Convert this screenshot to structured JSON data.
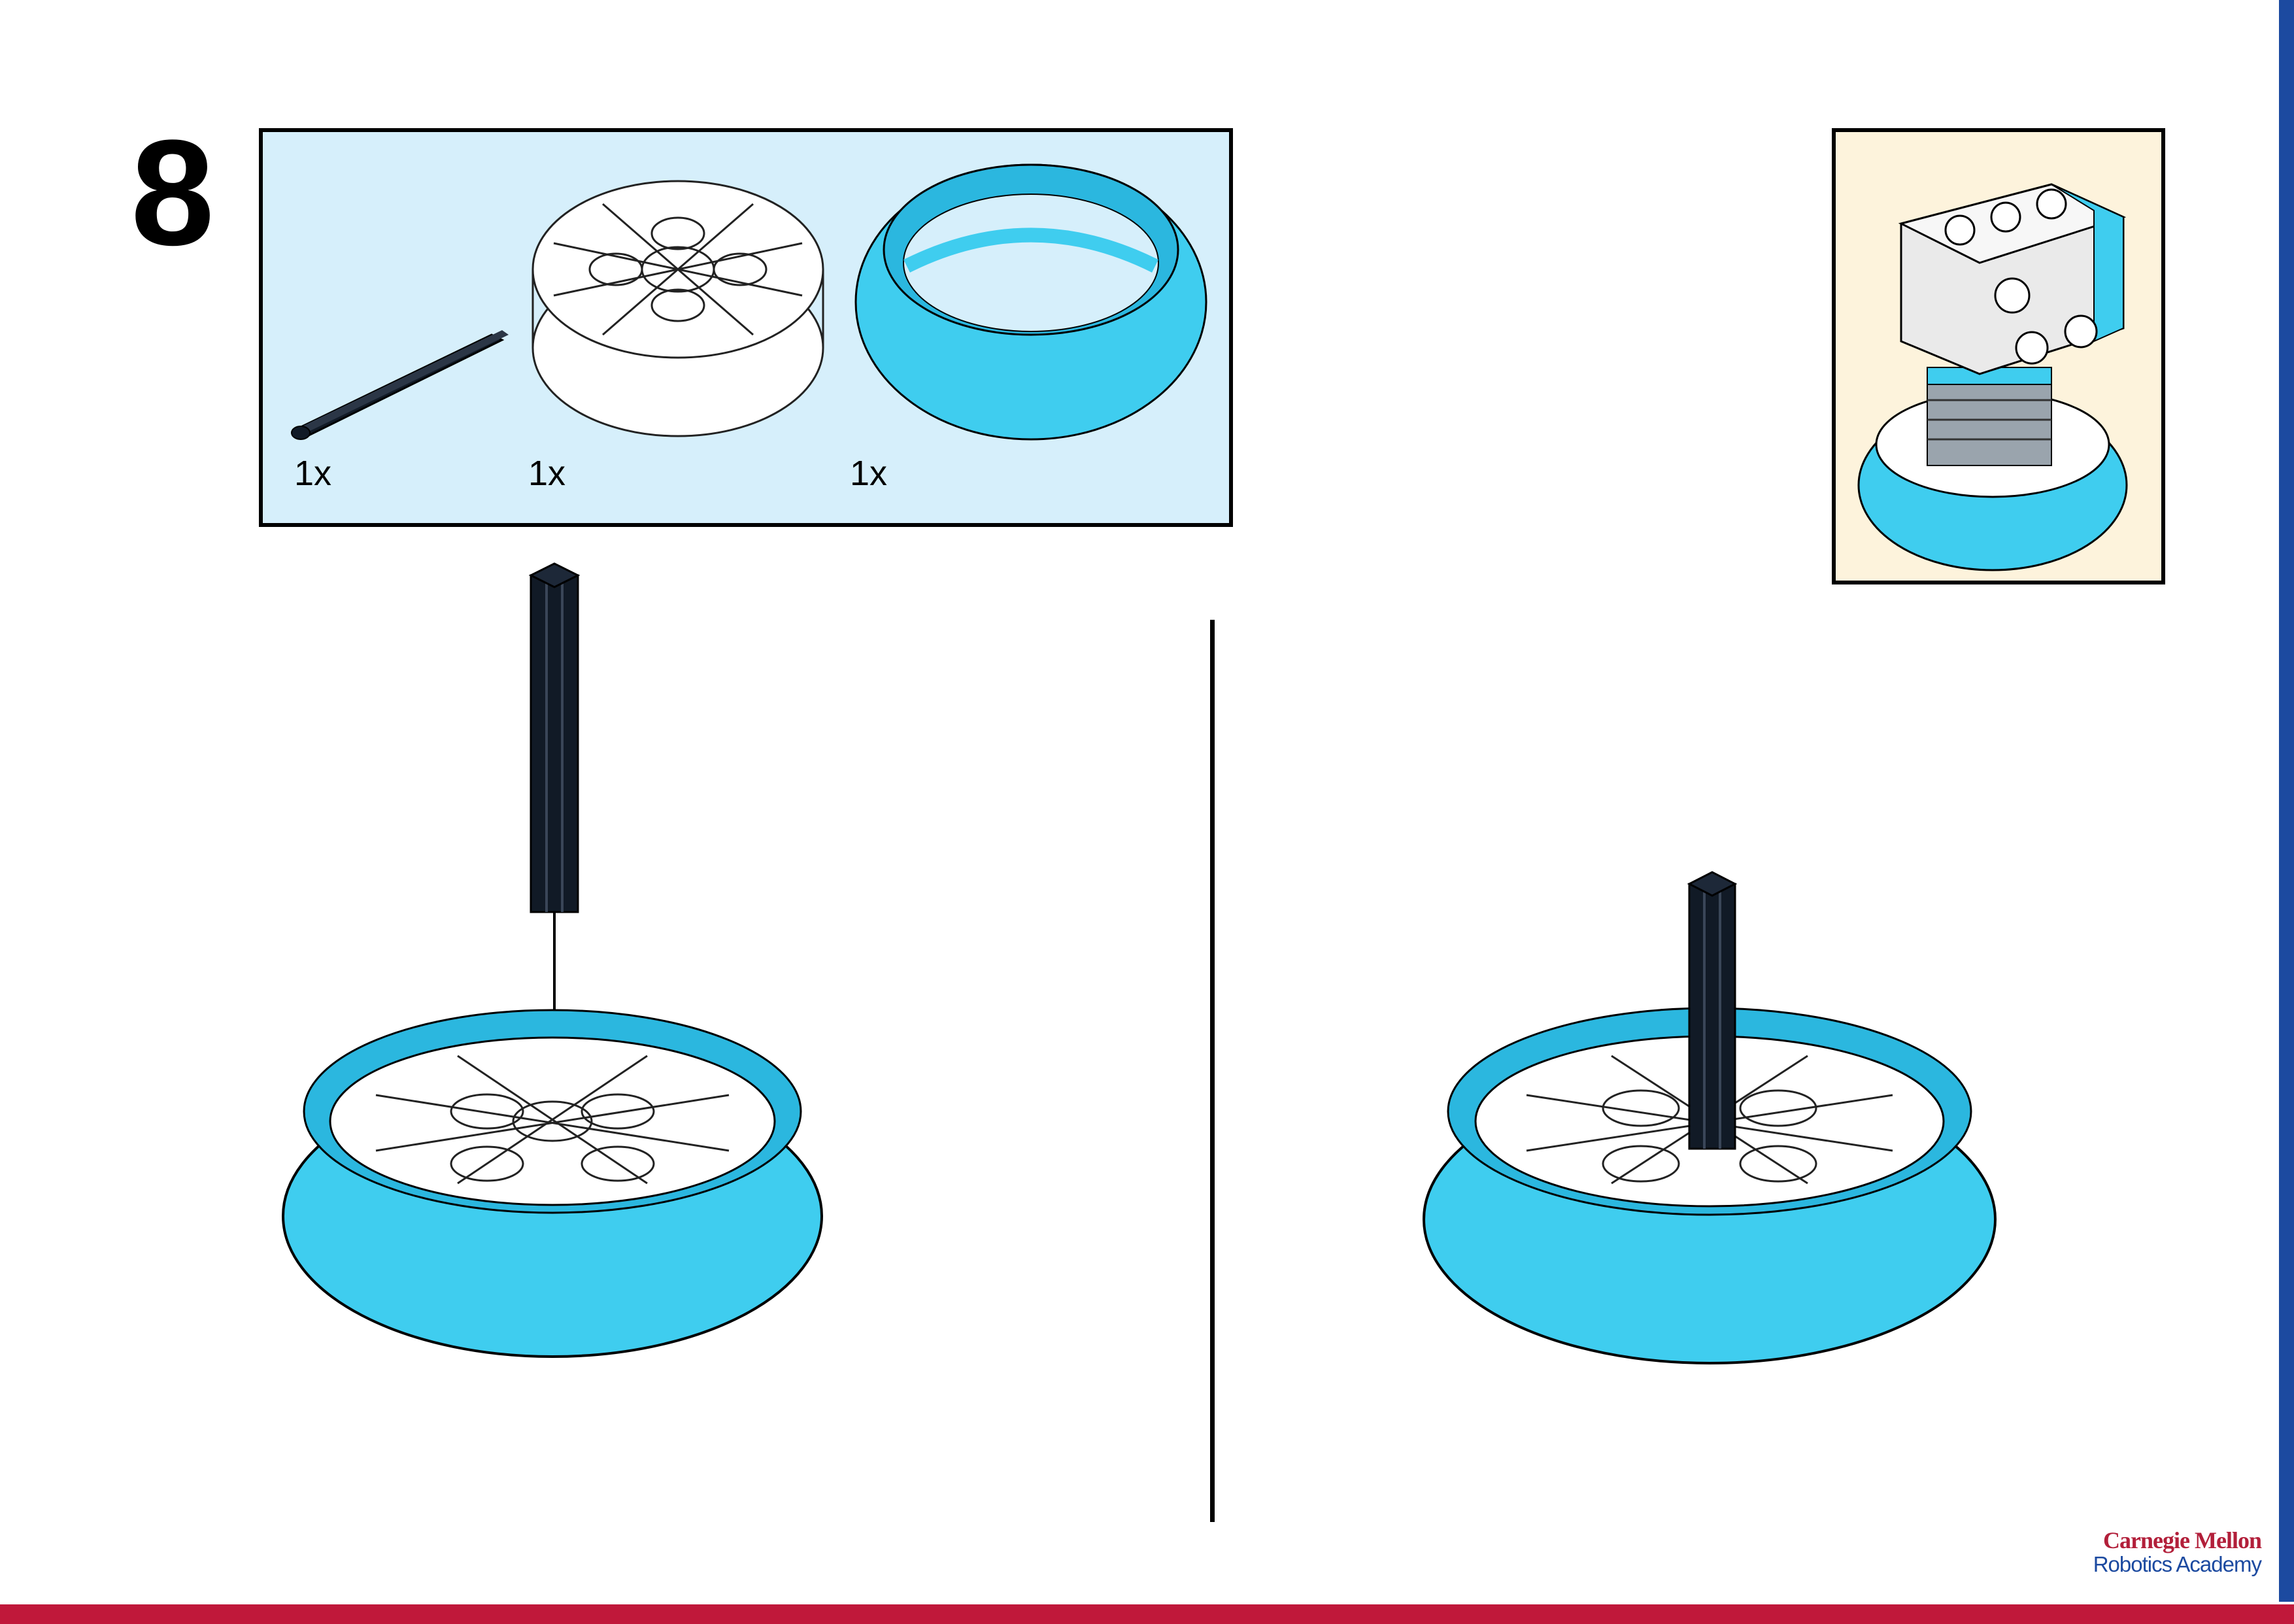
{
  "step": {
    "number": "8"
  },
  "parts_list": {
    "items": [
      {
        "part": "black-axle",
        "quantity": "1x"
      },
      {
        "part": "white-wheel-hub",
        "quantity": "1x"
      },
      {
        "part": "azure-tire",
        "quantity": "1x"
      }
    ]
  },
  "colors": {
    "parts_background": "#d6effb",
    "callout_background": "#fdf3dc",
    "tire": "#3fcdef",
    "axle": "#111a26",
    "brand_red": "#c0183a",
    "brand_blue": "#1c4aa0"
  },
  "logo": {
    "line1": "Carnegie Mellon",
    "line2": "Robotics Academy"
  }
}
